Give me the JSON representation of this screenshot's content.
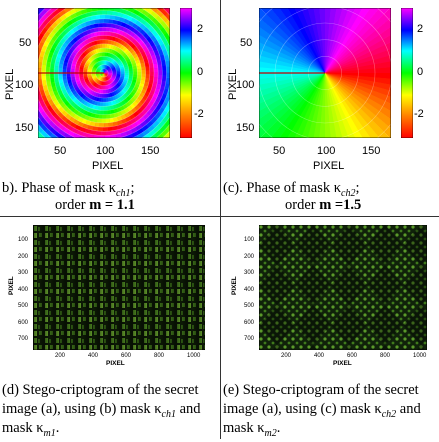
{
  "panel_b": {
    "ylabel": "PIXEL",
    "xlabel": "PIXEL",
    "yticks": [
      "50",
      "100",
      "150"
    ],
    "xticks": [
      "50",
      "100",
      "150"
    ],
    "cbar_ticks": [
      "2",
      "0",
      "-2"
    ],
    "caption_line1": "b). Phase of mask κ",
    "caption_sub1": "ch1",
    "caption_end1": ";",
    "caption_line2_pre": "order ",
    "caption_line2_bold": "m = 1.1"
  },
  "panel_c": {
    "ylabel": "PIXEL",
    "xlabel": "PIXEL",
    "yticks": [
      "50",
      "100",
      "150"
    ],
    "xticks": [
      "50",
      "100",
      "150"
    ],
    "cbar_ticks": [
      "2",
      "0",
      "-2"
    ],
    "caption_line1": "(c). Phase of  mask κ",
    "caption_sub1": "ch2",
    "caption_end1": ";",
    "caption_line2_pre": "order ",
    "caption_line2_bold": "m =1.5"
  },
  "panel_d": {
    "ylabel": "PIXEL",
    "xlabel": "PIXEL",
    "yticks": [
      "100",
      "200",
      "300",
      "400",
      "500",
      "600",
      "700"
    ],
    "xticks": [
      "200",
      "400",
      "600",
      "800",
      "1000"
    ],
    "caption_l1": "(d) Stego-criptogram of the secret",
    "caption_l2a": "image (a), using (b) mask κ",
    "caption_l2sub": "ch1",
    "caption_l2b": " and",
    "caption_l3a": "mask κ",
    "caption_l3sub": "m1",
    "caption_l3b": "."
  },
  "panel_e": {
    "ylabel": "PIXEL",
    "xlabel": "PIXEL",
    "yticks": [
      "100",
      "200",
      "300",
      "400",
      "500",
      "600",
      "700"
    ],
    "xticks": [
      "200",
      "400",
      "600",
      "800",
      "1000"
    ],
    "caption_l1": "(e) Stego-criptogram of the secret",
    "caption_l2a": "image (a), using (c) mask κ",
    "caption_l2sub": "ch2",
    "caption_l2b": " and",
    "caption_l3a": "mask κ",
    "caption_l3sub": "m2",
    "caption_l3b": "."
  }
}
